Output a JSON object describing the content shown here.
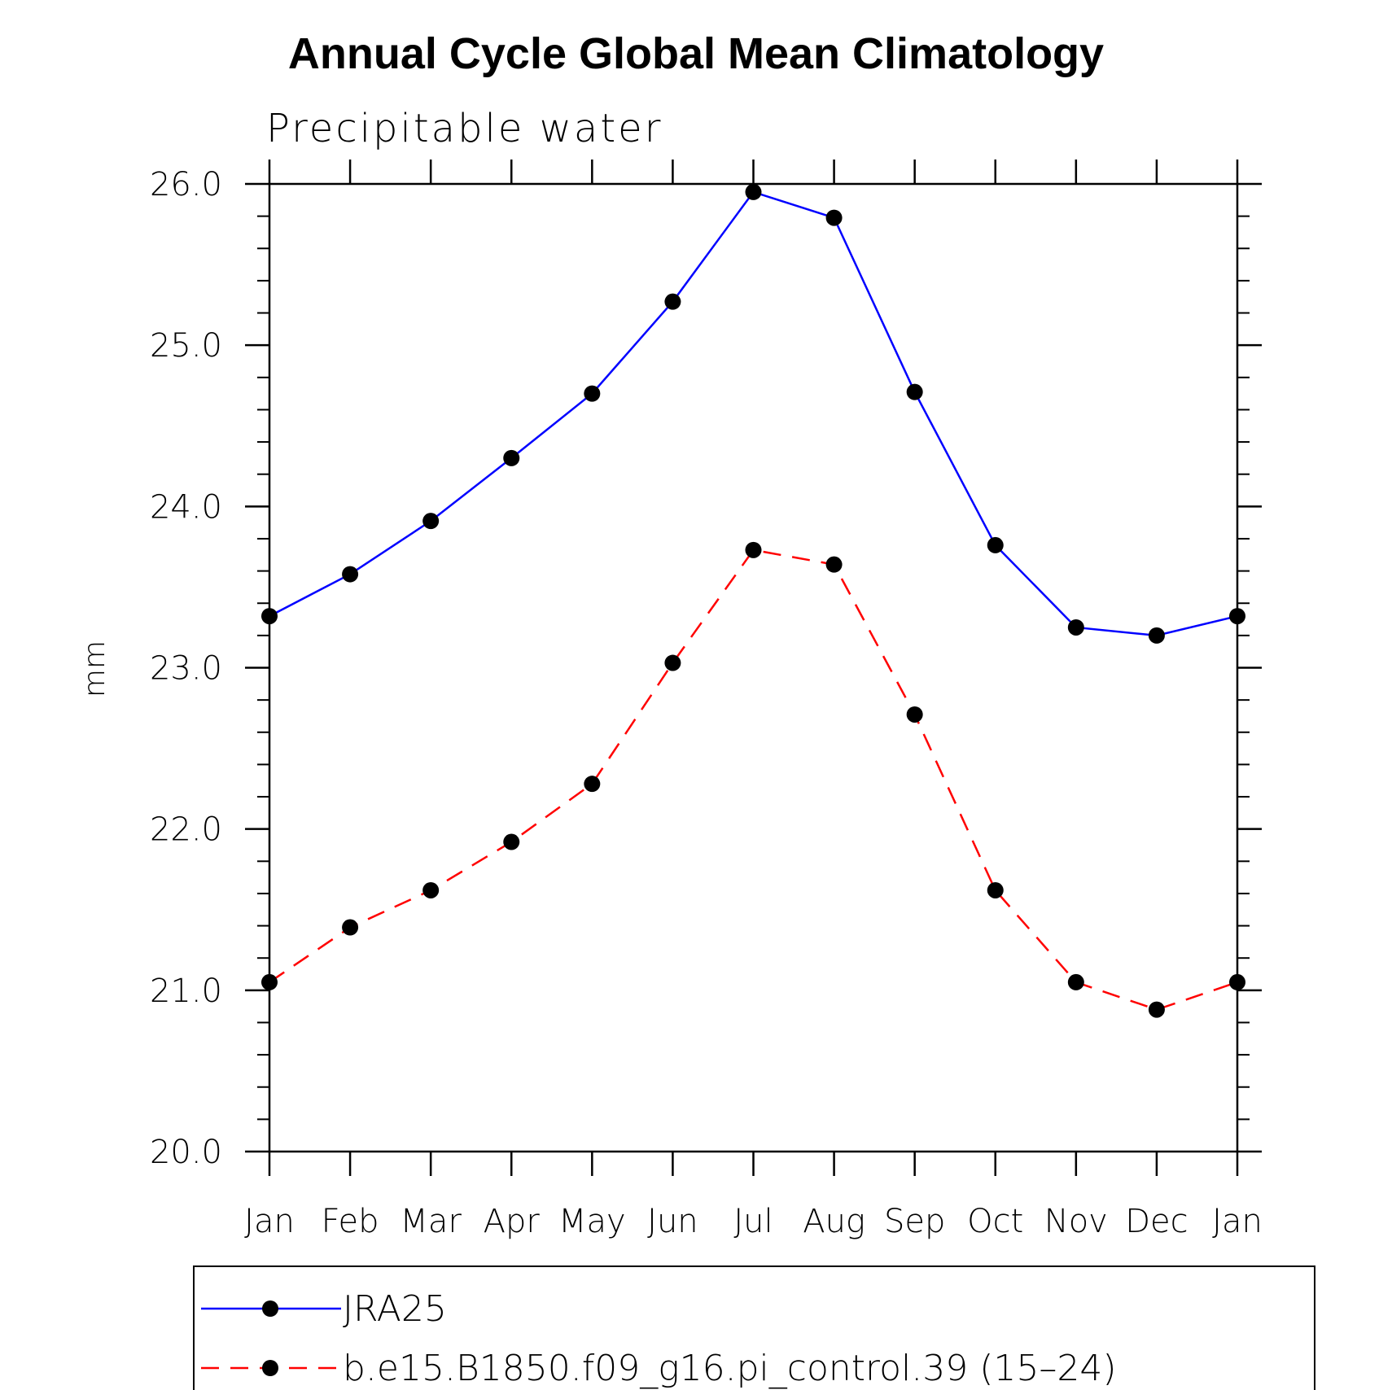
{
  "chart_data": {
    "type": "line",
    "title": "Annual Cycle Global Mean Climatology",
    "subtitle": "Precipitable water",
    "ylabel": "mm",
    "xlabel": "",
    "categories": [
      "Jan",
      "Feb",
      "Mar",
      "Apr",
      "May",
      "Jun",
      "Jul",
      "Aug",
      "Sep",
      "Oct",
      "Nov",
      "Dec",
      "Jan"
    ],
    "ylim": [
      20.0,
      26.0
    ],
    "yticks": [
      "20.0",
      "21.0",
      "22.0",
      "23.0",
      "24.0",
      "25.0",
      "26.0"
    ],
    "series": [
      {
        "name": "JRA25",
        "color": "#0000ff",
        "dash": "solid",
        "marker": "filled-circle",
        "values": [
          23.32,
          23.58,
          23.91,
          24.3,
          24.7,
          25.27,
          25.95,
          25.79,
          24.71,
          23.76,
          23.25,
          23.2,
          23.32
        ]
      },
      {
        "name": "b.e15.B1850.f09_g16.pi_control.39 (15–24)",
        "color": "#ff0000",
        "dash": "dashed",
        "marker": "filled-circle",
        "values": [
          21.05,
          21.39,
          21.62,
          21.92,
          22.28,
          23.03,
          23.73,
          23.64,
          22.71,
          21.62,
          21.05,
          20.88,
          21.05
        ]
      }
    ],
    "legend_position": "bottom"
  }
}
